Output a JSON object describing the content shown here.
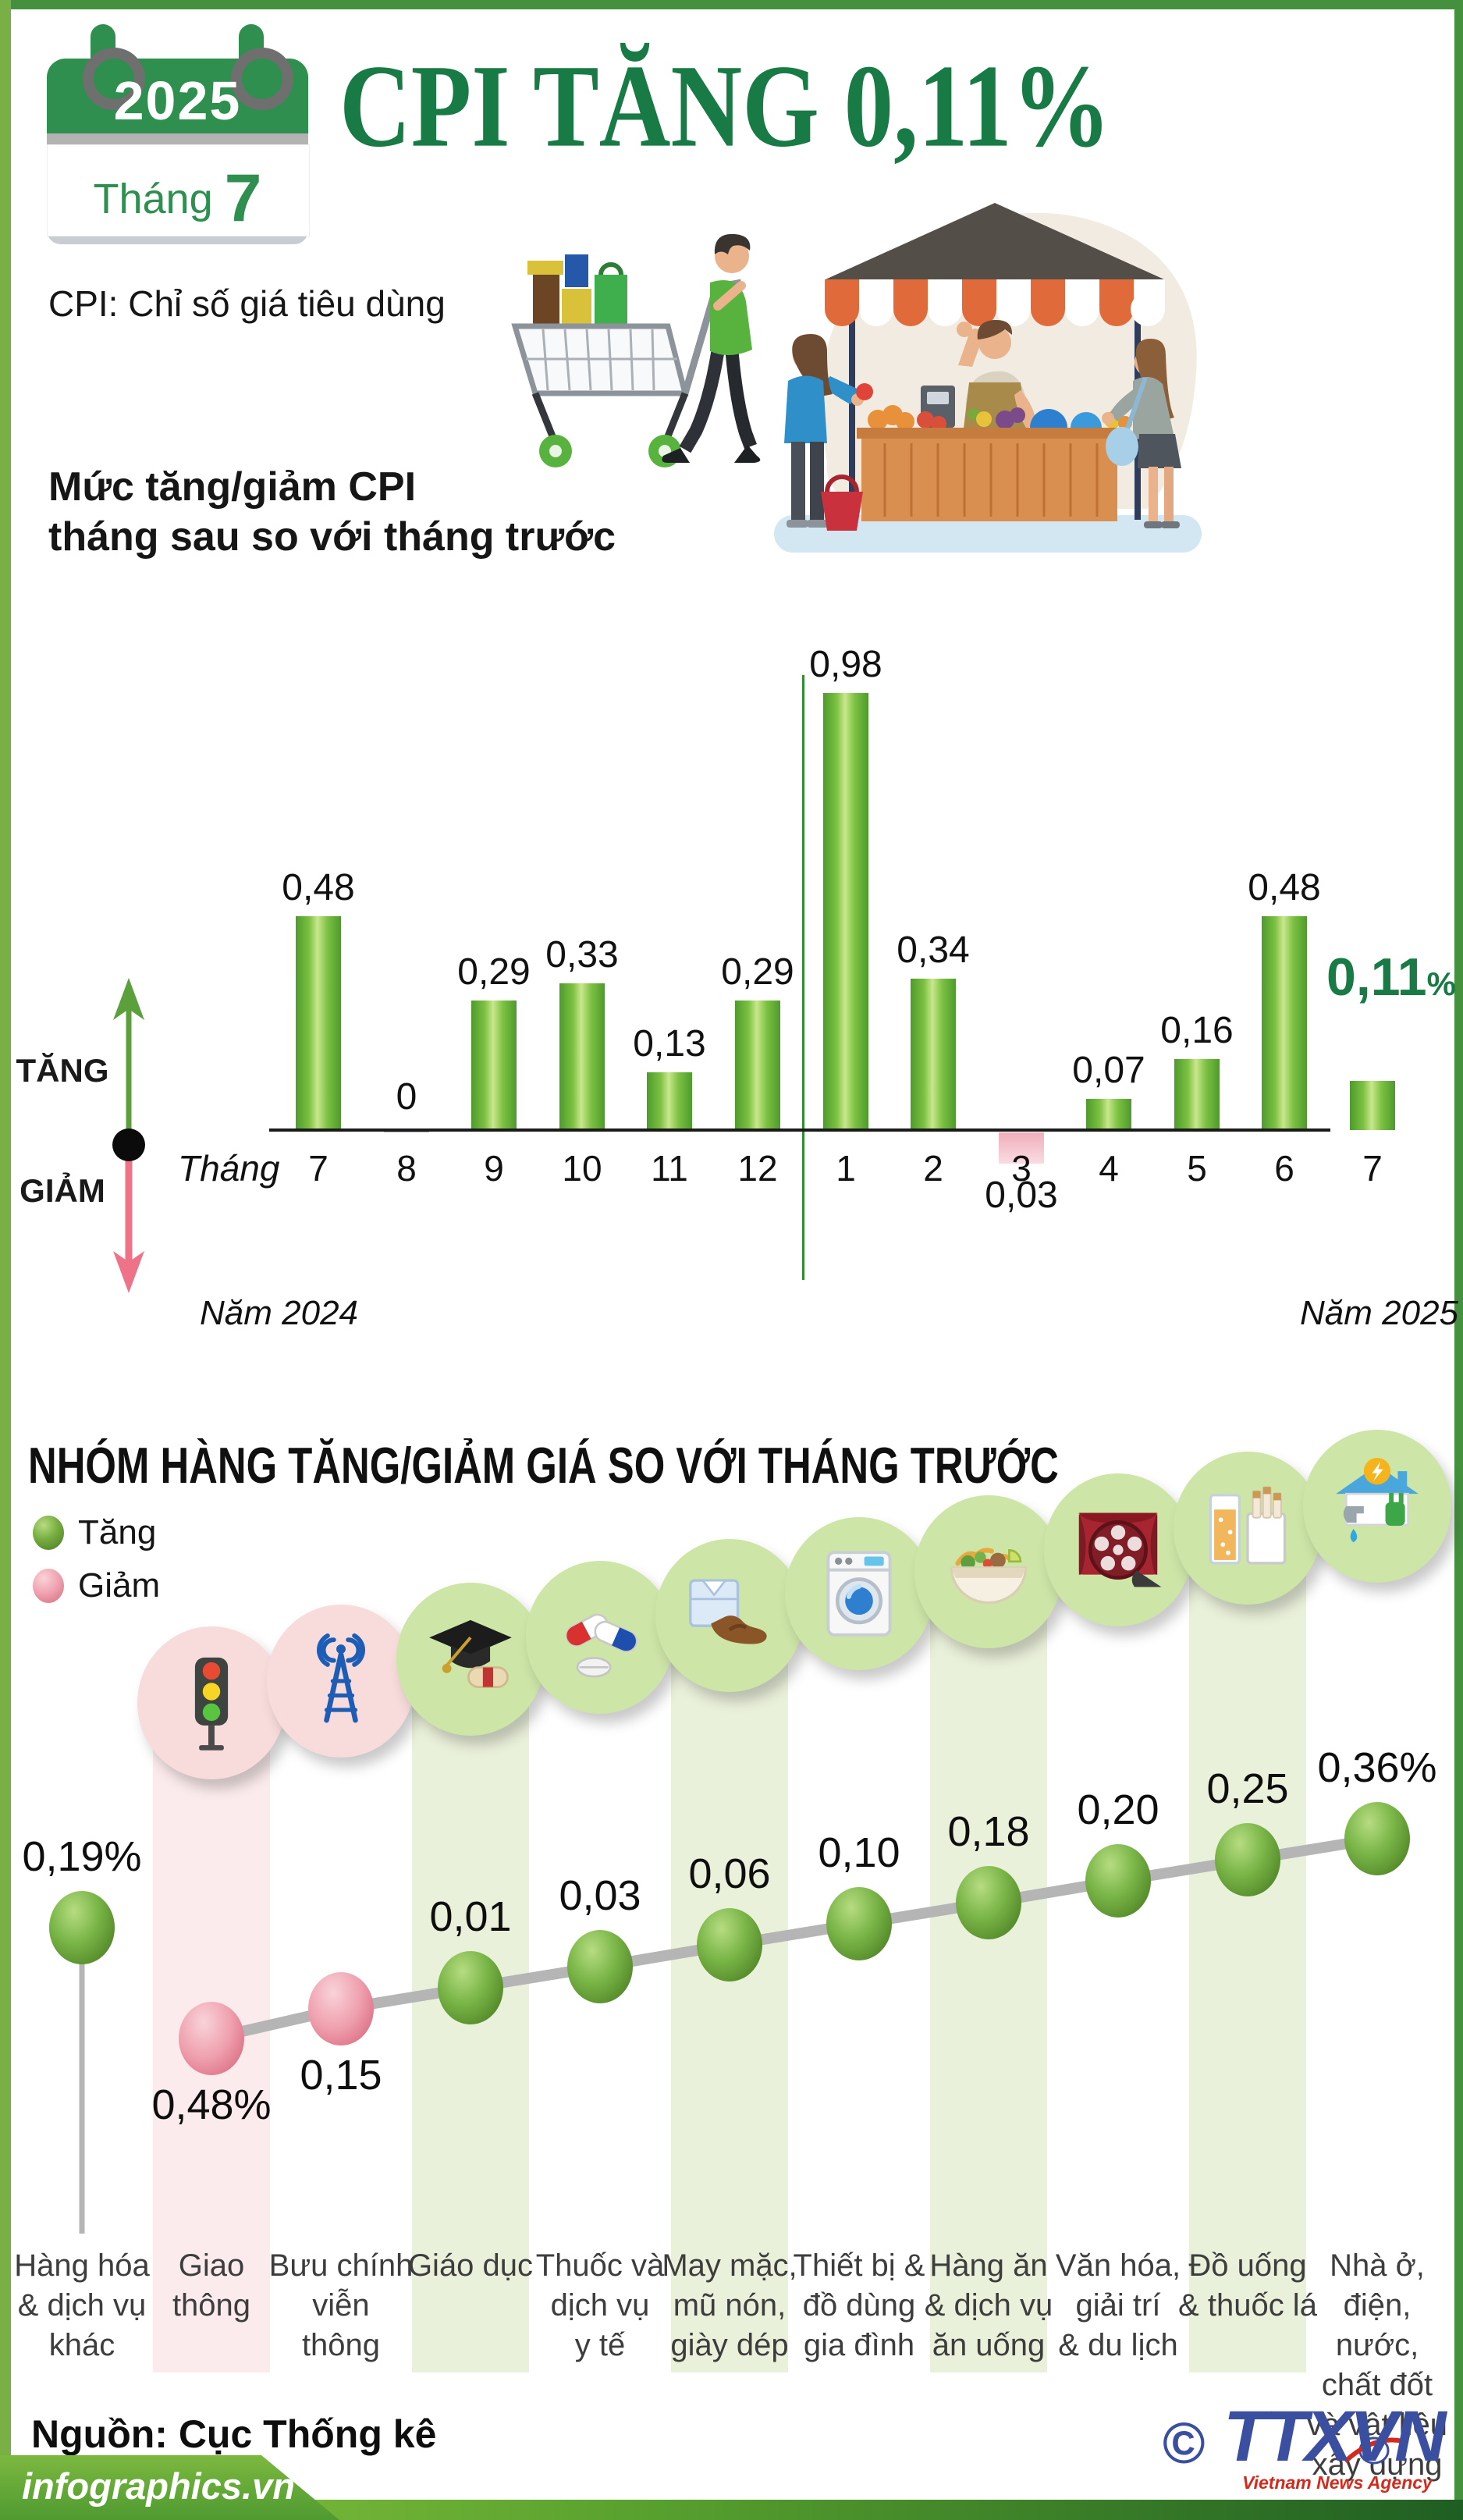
{
  "header": {
    "calendar": {
      "year": "2025",
      "month_word": "Tháng",
      "month_number": "7"
    },
    "title": "CPI TĂNG 0,11%",
    "subtitle": "CPI: Chỉ số giá tiêu dùng",
    "chart1_heading_line1": "Mức tăng/giảm CPI",
    "chart1_heading_line2": "tháng sau so với tháng trước"
  },
  "section2_title": "NHÓM HÀNG TĂNG/GIẢM GIÁ SO VỚI THÁNG TRƯỚC",
  "footer": {
    "source": "Nguồn: Cục Thống kê",
    "site": "infographics.vn",
    "copyright": "©",
    "agency": "TTXVN",
    "agency_sub": "Vietnam News Agency"
  },
  "chart_data": [
    {
      "type": "bar",
      "title": "Mức tăng/giảm CPI tháng sau so với tháng trước",
      "x_axis_label": "Tháng",
      "categories": [
        "7",
        "8",
        "9",
        "10",
        "11",
        "12",
        "1",
        "2",
        "3",
        "4",
        "5",
        "6",
        "7"
      ],
      "values": [
        0.48,
        0,
        0.29,
        0.33,
        0.13,
        0.29,
        0.98,
        0.34,
        -0.03,
        0.07,
        0.16,
        0.48,
        0.11
      ],
      "labels": [
        "0,48",
        "0",
        "0,29",
        "0,33",
        "0,13",
        "0,29",
        "0,98",
        "0,34",
        "0,03",
        "0,07",
        "0,16",
        "0,48",
        "0,11"
      ],
      "last_label_suffix": "%",
      "unit": "%",
      "ylim": [
        -0.1,
        1.05
      ],
      "grid": false,
      "direction_labels": {
        "up": "TĂNG",
        "down": "GIẢM"
      },
      "years": {
        "left": "Năm 2024",
        "right": "Năm 2025"
      },
      "colors": {
        "positive": "#7cc142",
        "negative": "#f0aebb",
        "divider": "#2f8f2f",
        "highlight_text": "#187a44"
      }
    },
    {
      "type": "scatter",
      "title": "NHÓM HÀNG TĂNG/GIẢM GIÁ SO VỚI THÁNG TRƯỚC",
      "unit": "%",
      "legend": [
        {
          "label": "Tăng",
          "direction": "up",
          "color": "#76ad3f"
        },
        {
          "label": "Giảm",
          "direction": "down",
          "color": "#ef9fae"
        }
      ],
      "points": [
        {
          "category": "Hàng hóa & dịch vụ khác",
          "label_lines": [
            "Hàng hóa",
            "& dịch vụ",
            "khác"
          ],
          "value": 0.19,
          "display": "0,19%",
          "direction": "up",
          "icon": null,
          "band": null
        },
        {
          "category": "Giao thông",
          "label_lines": [
            "Giao",
            "thông"
          ],
          "value": -0.48,
          "display": "0,48%",
          "direction": "down",
          "icon": "traffic-light",
          "band": "pink"
        },
        {
          "category": "Bưu chính viễn thông",
          "label_lines": [
            "Bưu chính",
            "viễn",
            "thông"
          ],
          "value": -0.15,
          "display": "0,15",
          "direction": "down",
          "icon": "telecom-tower",
          "band": null
        },
        {
          "category": "Giáo dục",
          "label_lines": [
            "Giáo dục"
          ],
          "value": 0.01,
          "display": "0,01",
          "direction": "up",
          "icon": "graduation-cap",
          "band": "green"
        },
        {
          "category": "Thuốc và dịch vụ y tế",
          "label_lines": [
            "Thuốc và",
            "dịch vụ",
            "y tế"
          ],
          "value": 0.03,
          "display": "0,03",
          "direction": "up",
          "icon": "medicine",
          "band": null
        },
        {
          "category": "May mặc, mũ nón, giày dép",
          "label_lines": [
            "May mặc,",
            "mũ nón,",
            "giày dép"
          ],
          "value": 0.06,
          "display": "0,06",
          "direction": "up",
          "icon": "clothing",
          "band": "green"
        },
        {
          "category": "Thiết bị & đồ dùng gia đình",
          "label_lines": [
            "Thiết bị &",
            "đồ dùng",
            "gia đình"
          ],
          "value": 0.1,
          "display": "0,10",
          "direction": "up",
          "icon": "washing-machine",
          "band": null
        },
        {
          "category": "Hàng ăn & dịch vụ ăn uống",
          "label_lines": [
            "Hàng ăn",
            "& dịch vụ",
            "ăn uống"
          ],
          "value": 0.18,
          "display": "0,18",
          "direction": "up",
          "icon": "food-bowl",
          "band": "green"
        },
        {
          "category": "Văn hóa, giải trí & du lịch",
          "label_lines": [
            "Văn hóa,",
            "giải trí",
            "& du lịch"
          ],
          "value": 0.2,
          "display": "0,20",
          "direction": "up",
          "icon": "cinema",
          "band": null
        },
        {
          "category": "Đồ uống & thuốc lá",
          "label_lines": [
            "Đồ uống",
            "& thuốc lá"
          ],
          "value": 0.25,
          "display": "0,25",
          "direction": "up",
          "icon": "drinks-tobacco",
          "band": "green"
        },
        {
          "category": "Nhà ở, điện, nước, chất đốt và vật liệu xây dựng",
          "label_lines": [
            "Nhà ở,",
            "điện,",
            "nước,",
            "chất đốt",
            "và vật liệu",
            "xây dựng"
          ],
          "value": 0.36,
          "display": "0,36%",
          "direction": "up",
          "icon": "housing-utilities",
          "band": null
        }
      ]
    }
  ]
}
